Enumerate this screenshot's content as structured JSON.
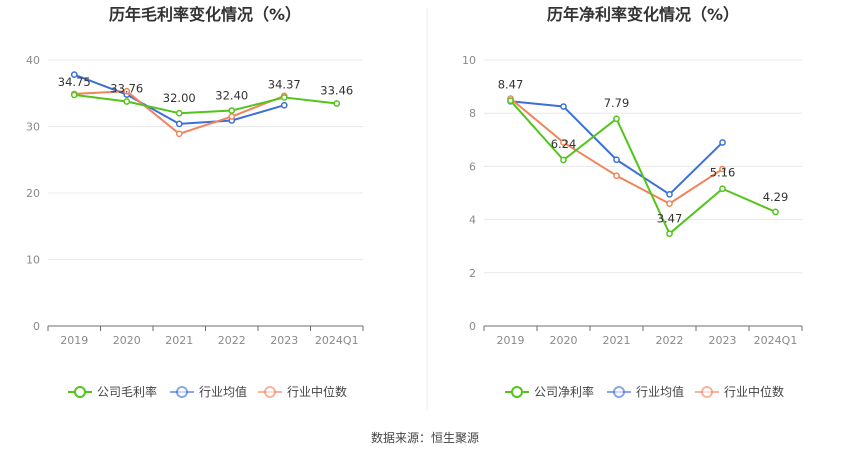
{
  "source_label": "数据来源：恒生聚源",
  "colors": {
    "company": "#52c41a",
    "industry_avg": "#3c6fd8",
    "industry_median": "#f0845c"
  },
  "chart_data": [
    {
      "type": "line",
      "title": "历年毛利率变化情况（%）",
      "categories": [
        "2019",
        "2020",
        "2021",
        "2022",
        "2023",
        "2024Q1"
      ],
      "ylim": [
        0,
        40
      ],
      "yticks": [
        0,
        10,
        20,
        30,
        40
      ],
      "grid": true,
      "legend": "bottom",
      "series": [
        {
          "name": "公司毛利率",
          "color": "#52c41a",
          "values": [
            34.75,
            33.76,
            32.0,
            32.4,
            34.37,
            33.46
          ],
          "labels": [
            "34.75",
            "33.76",
            "32.00",
            "32.40",
            "34.37",
            "33.46"
          ]
        },
        {
          "name": "行业均值",
          "color": "#3c6fd8",
          "values": [
            37.8,
            34.8,
            30.4,
            30.9,
            33.2,
            null
          ]
        },
        {
          "name": "行业中位数",
          "color": "#f0845c",
          "values": [
            34.9,
            35.3,
            28.9,
            31.5,
            34.6,
            null
          ]
        }
      ]
    },
    {
      "type": "line",
      "title": "历年净利率变化情况（%）",
      "categories": [
        "2019",
        "2020",
        "2021",
        "2022",
        "2023",
        "2024Q1"
      ],
      "ylim": [
        0,
        10
      ],
      "yticks": [
        0,
        2,
        4,
        6,
        8,
        10
      ],
      "grid": true,
      "legend": "bottom",
      "series": [
        {
          "name": "公司净利率",
          "color": "#52c41a",
          "values": [
            8.47,
            6.24,
            7.79,
            3.47,
            5.16,
            4.29
          ],
          "labels": [
            "8.47",
            "6.24",
            "7.79",
            "3.47",
            "5.16",
            "4.29"
          ]
        },
        {
          "name": "行业均值",
          "color": "#3c6fd8",
          "values": [
            8.45,
            8.25,
            6.25,
            4.95,
            6.9,
            null
          ]
        },
        {
          "name": "行业中位数",
          "color": "#f0845c",
          "values": [
            8.55,
            6.9,
            5.65,
            4.6,
            5.9,
            null
          ]
        }
      ]
    }
  ]
}
